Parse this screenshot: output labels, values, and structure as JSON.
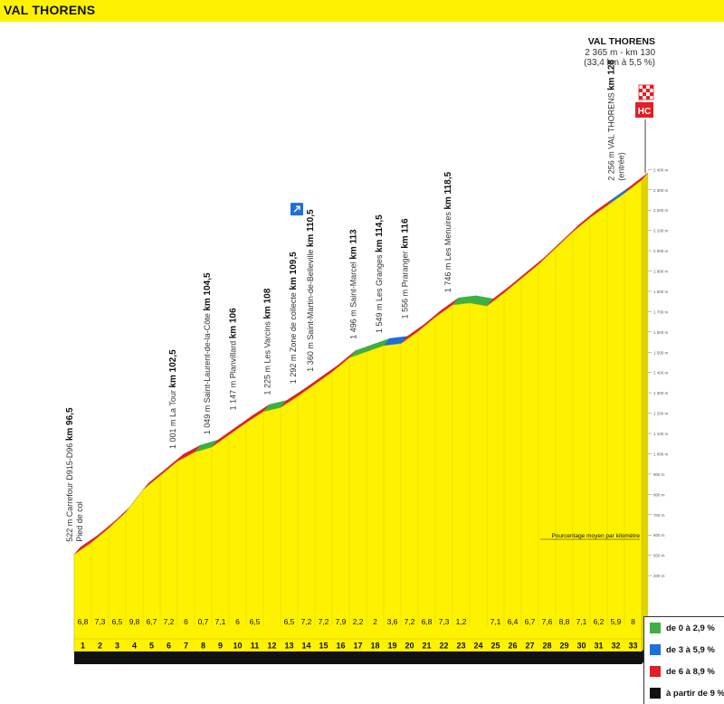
{
  "page_title": "VAL THORENS",
  "summit": {
    "name": "VAL THORENS",
    "line1": "2 365 m - km 130",
    "line2": "(33,4 km à 5,5 %)",
    "category": "HC"
  },
  "caption": "Pourcentage moyen par kilomètre",
  "legend": [
    {
      "label": "de 0 à 2,9 %",
      "color": "#3cb043"
    },
    {
      "label": "de 3 à 5,9 %",
      "color": "#1e6fd9"
    },
    {
      "label": "de 6 à 8,9 %",
      "color": "#e31e24"
    },
    {
      "label": "à partir de 9 %",
      "color": "#111111"
    }
  ],
  "waypoints": [
    {
      "name": "522 m Carrefour D915-D96",
      "name2": "Pied de col",
      "km": "km 96,5",
      "at": 0
    },
    {
      "name": "1 001 m La Tour",
      "km": "km 102,5",
      "at": 6
    },
    {
      "name": "1 049 m Saint-Laurent-de-la-Côte",
      "km": "km 104,5",
      "at": 8
    },
    {
      "name": "1 147 m Planvillard",
      "km": "km 106",
      "at": 9.5
    },
    {
      "name": "1 225 m Les Varcins",
      "km": "km 108",
      "at": 11.5
    },
    {
      "name": "1 292 m Zone de collecte",
      "km": "km 109,5",
      "at": 13,
      "icon": "collection-zone-icon"
    },
    {
      "name": "1 360 m Saint-Martin-de-Belleville",
      "km": "km 110,5",
      "at": 14
    },
    {
      "name": "1 496 m Saint-Marcel",
      "km": "km 113",
      "at": 16.5
    },
    {
      "name": "1 549 m Les Granges",
      "km": "km 114,5",
      "at": 18
    },
    {
      "name": "1 556 m Praranger",
      "km": "km 116",
      "at": 19.5
    },
    {
      "name": "1 746 m Les Menuires",
      "km": "km 118,5",
      "at": 22
    },
    {
      "name": "2 256 m VAL THORENS",
      "name2": "(entrée)",
      "km": "km 128",
      "at": 31.5
    }
  ],
  "chart_data": {
    "type": "area",
    "title": "VAL THORENS",
    "xlabel": "",
    "ylabel": "",
    "x": [
      1,
      2,
      3,
      4,
      5,
      6,
      7,
      8,
      9,
      10,
      11,
      12,
      13,
      14,
      15,
      16,
      17,
      18,
      19,
      20,
      21,
      22,
      23,
      24,
      25,
      26,
      27,
      28,
      29,
      30,
      31,
      32,
      33
    ],
    "km_labels": [
      "1",
      "2",
      "3",
      "4",
      "5",
      "6",
      "7",
      "8",
      "9",
      "10",
      "11",
      "12",
      "13",
      "14",
      "15",
      "16",
      "17",
      "18",
      "19",
      "20",
      "21",
      "22",
      "23",
      "24",
      "25",
      "26",
      "27",
      "28",
      "29",
      "30",
      "31",
      "32",
      "33"
    ],
    "gradient_labels": [
      "6,8",
      "7,3",
      "6,5",
      "9,8",
      "6,7",
      "7,2",
      "6",
      "0,7",
      "7,1",
      "6",
      "6,5",
      "",
      "6,5",
      "7,2",
      "7,2",
      "7,9",
      "2,2",
      "2",
      "3,6",
      "7,2",
      "6,8",
      "7,3",
      "1,2",
      "",
      "7,1",
      "6,4",
      "6,7",
      "7,6",
      "8,8",
      "7,1",
      "6,2",
      "5,9",
      "8"
    ],
    "gradient_pct": [
      6.8,
      7.3,
      6.5,
      9.8,
      6.7,
      7.2,
      6,
      0.7,
      7.1,
      6,
      6.5,
      null,
      6.5,
      7.2,
      7.2,
      7.9,
      2.2,
      2,
      3.6,
      7.2,
      6.8,
      7.3,
      1.2,
      null,
      7.1,
      6.4,
      6.7,
      7.6,
      8.8,
      7.1,
      6.2,
      5.9,
      8
    ],
    "altitude_m": [
      522,
      580,
      650,
      730,
      840,
      910,
      980,
      1025,
      1050,
      1110,
      1170,
      1225,
      1245,
      1300,
      1360,
      1420,
      1490,
      1520,
      1550,
      1560,
      1620,
      1690,
      1750,
      1760,
      1745,
      1810,
      1880,
      1950,
      2030,
      2110,
      2180,
      2240,
      2300,
      2365
    ],
    "y_ticks": [
      "400 m",
      "500 m",
      "600 m",
      "700 m",
      "800 m",
      "900 m",
      "1 000 m",
      "1 100 m",
      "1 200 m",
      "1 300 m",
      "1 400 m",
      "1 500 m",
      "1 600 m",
      "1 700 m",
      "1 800 m",
      "1 900 m",
      "2 000 m",
      "2 100 m",
      "2 200 m",
      "2 300 m",
      "2 400 m"
    ],
    "ylim": [
      400,
      2400
    ]
  }
}
